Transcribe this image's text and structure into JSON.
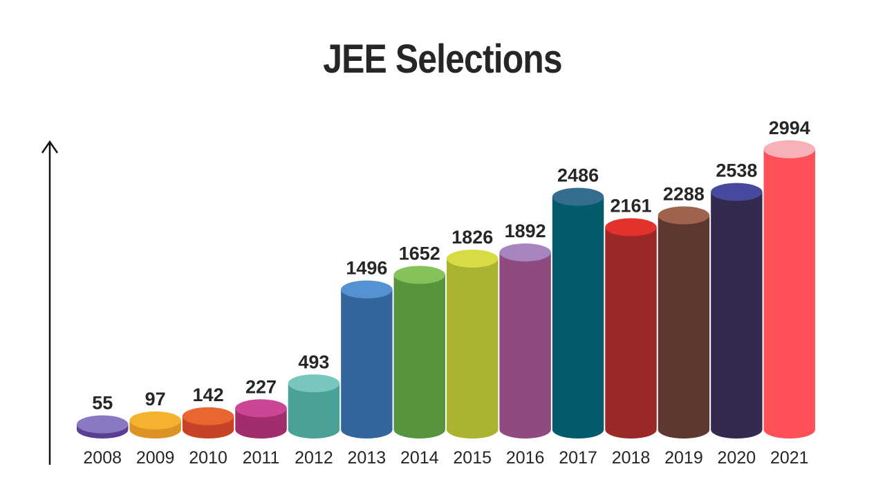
{
  "chart_data": {
    "type": "bar",
    "title": "JEE Selections",
    "xlabel": "",
    "ylabel": "",
    "categories": [
      "2008",
      "2009",
      "2010",
      "2011",
      "2012",
      "2013",
      "2014",
      "2015",
      "2016",
      "2017",
      "2018",
      "2019",
      "2020",
      "2021"
    ],
    "values": [
      55,
      97,
      142,
      227,
      493,
      1496,
      1652,
      1826,
      1892,
      2486,
      2161,
      2288,
      2538,
      2994
    ],
    "value_labels": [
      "55",
      "97",
      "142",
      "227",
      "493",
      "1496",
      "1652",
      "1826",
      "1892",
      "2486",
      "2161",
      "2288",
      "2538",
      "2994"
    ],
    "ylim": [
      0,
      3000
    ],
    "grid": false,
    "legend": "none",
    "style": "3d-cylinder",
    "colors": [
      "#583f94",
      "#dc9324",
      "#c74227",
      "#a22d6c",
      "#4aa294",
      "#34659d",
      "#56953d",
      "#aab32f",
      "#8f4a7f",
      "#035a6b",
      "#9c2727",
      "#5d3730",
      "#342a4f",
      "#ff5058"
    ],
    "top_colors": [
      "#8b78c2",
      "#f5b22f",
      "#e96631",
      "#cc4696",
      "#79c7bc",
      "#5592d1",
      "#86c25a",
      "#d7dc45",
      "#a786bf",
      "#356d8f",
      "#e2322b",
      "#a0644e",
      "#474a9c",
      "#f6b2b7"
    ]
  }
}
